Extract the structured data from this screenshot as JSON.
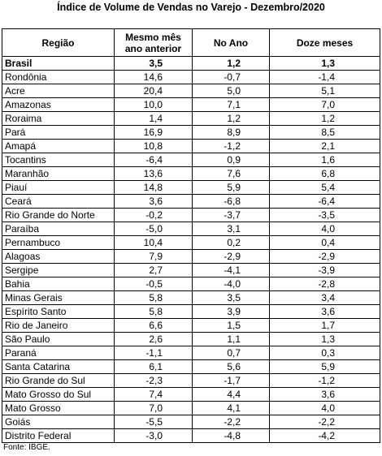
{
  "title": "Índice de Volume de Vendas no Varejo - Dezembro/2020",
  "table": {
    "header": [
      "Região",
      "Mesmo mês ano anterior",
      "No Ano",
      "Doze meses"
    ],
    "rows": [
      [
        "Brasil",
        "3,5",
        "1,2",
        "1,3"
      ],
      [
        "Rondônia",
        "14,6",
        "-0,7",
        "-1,4"
      ],
      [
        "Acre",
        "20,4",
        "5,0",
        "5,1"
      ],
      [
        "Amazonas",
        "10,0",
        "7,1",
        "7,0"
      ],
      [
        "Roraima",
        "1,4",
        "1,2",
        "1,2"
      ],
      [
        "Pará",
        "16,9",
        "8,9",
        "8,5"
      ],
      [
        "Amapá",
        "10,8",
        "-1,2",
        "2,1"
      ],
      [
        "Tocantins",
        "-6,4",
        "0,9",
        "1,6"
      ],
      [
        "Maranhão",
        "13,6",
        "7,6",
        "6,8"
      ],
      [
        "Piauí",
        "14,8",
        "5,9",
        "5,4"
      ],
      [
        "Ceará",
        "3,6",
        "-6,8",
        "-6,4"
      ],
      [
        "Rio Grande do Norte",
        "-0,2",
        "-3,7",
        "-3,5"
      ],
      [
        "Paraíba",
        "-5,0",
        "3,1",
        "4,0"
      ],
      [
        "Pernambuco",
        "10,4",
        "0,2",
        "0,4"
      ],
      [
        "Alagoas",
        "7,9",
        "-2,9",
        "-2,9"
      ],
      [
        "Sergipe",
        "2,7",
        "-4,1",
        "-3,9"
      ],
      [
        "Bahia",
        "-0,5",
        "-4,0",
        "-2,8"
      ],
      [
        "Minas Gerais",
        "5,8",
        "3,5",
        "3,4"
      ],
      [
        "Espírito Santo",
        "5,8",
        "3,9",
        "3,6"
      ],
      [
        "Rio de Janeiro",
        "6,6",
        "1,5",
        "1,7"
      ],
      [
        "São Paulo",
        "2,6",
        "1,1",
        "1,3"
      ],
      [
        "Paraná",
        "-1,1",
        "0,7",
        "0,3"
      ],
      [
        "Santa Catarina",
        "6,1",
        "5,6",
        "5,9"
      ],
      [
        "Rio Grande do Sul",
        "-2,3",
        "-1,7",
        "-1,2"
      ],
      [
        "Mato Grosso do Sul",
        "7,4",
        "4,4",
        "3,6"
      ],
      [
        "Mato Grosso",
        "7,0",
        "4,1",
        "4,0"
      ],
      [
        "Goiás",
        "-5,5",
        "-2,2",
        "-2,2"
      ],
      [
        "Distrito Federal",
        "-3,0",
        "-4,8",
        "-4,2"
      ]
    ]
  },
  "footer": "Fonte: IBGE."
}
